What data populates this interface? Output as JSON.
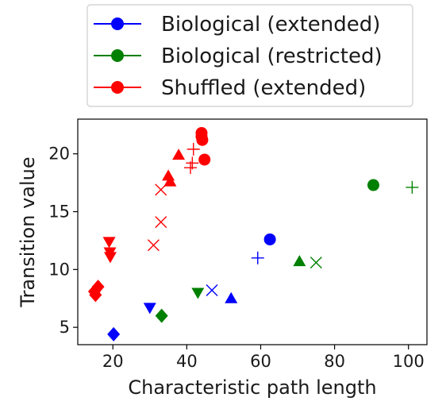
{
  "chart_data": {
    "type": "scatter",
    "xlabel": "Characteristic path length",
    "ylabel": "Transition value",
    "xlim": [
      10.5,
      105
    ],
    "ylim": [
      3.5,
      23
    ],
    "xticks": [
      20,
      40,
      60,
      80,
      100
    ],
    "yticks": [
      5,
      10,
      15,
      20
    ],
    "grid": false,
    "legend_position": "top-center",
    "series": [
      {
        "name": "Biological (extended)",
        "color": "#0000ff",
        "points": [
          {
            "x": 62.5,
            "y": 12.6,
            "marker": "circle"
          },
          {
            "x": 59.2,
            "y": 11.0,
            "marker": "plus"
          },
          {
            "x": 46.8,
            "y": 8.2,
            "marker": "x"
          },
          {
            "x": 52.0,
            "y": 7.5,
            "marker": "triangle-up"
          },
          {
            "x": 30.0,
            "y": 6.7,
            "marker": "triangle-down"
          },
          {
            "x": 20.2,
            "y": 4.4,
            "marker": "diamond"
          }
        ]
      },
      {
        "name": "Biological (restricted)",
        "color": "#008000",
        "points": [
          {
            "x": 90.5,
            "y": 17.3,
            "marker": "circle"
          },
          {
            "x": 101.0,
            "y": 17.1,
            "marker": "plus"
          },
          {
            "x": 70.5,
            "y": 10.7,
            "marker": "triangle-up"
          },
          {
            "x": 75.0,
            "y": 10.6,
            "marker": "x"
          },
          {
            "x": 43.0,
            "y": 8.0,
            "marker": "triangle-down"
          },
          {
            "x": 33.2,
            "y": 6.0,
            "marker": "diamond"
          }
        ]
      },
      {
        "name": "Shuffled (extended)",
        "color": "#ff0000",
        "points": [
          {
            "x": 44.0,
            "y": 21.8,
            "marker": "circle"
          },
          {
            "x": 44.0,
            "y": 21.5,
            "marker": "circle"
          },
          {
            "x": 44.2,
            "y": 21.2,
            "marker": "circle"
          },
          {
            "x": 44.8,
            "y": 19.5,
            "marker": "circle"
          },
          {
            "x": 41.8,
            "y": 20.4,
            "marker": "plus"
          },
          {
            "x": 41.5,
            "y": 19.2,
            "marker": "plus"
          },
          {
            "x": 41.0,
            "y": 18.8,
            "marker": "plus"
          },
          {
            "x": 37.8,
            "y": 19.9,
            "marker": "triangle-up"
          },
          {
            "x": 35.0,
            "y": 18.1,
            "marker": "triangle-up"
          },
          {
            "x": 35.5,
            "y": 17.6,
            "marker": "triangle-up"
          },
          {
            "x": 33.0,
            "y": 16.9,
            "marker": "x"
          },
          {
            "x": 33.0,
            "y": 14.1,
            "marker": "x"
          },
          {
            "x": 31.0,
            "y": 12.1,
            "marker": "x"
          },
          {
            "x": 19.0,
            "y": 12.4,
            "marker": "triangle-down"
          },
          {
            "x": 19.2,
            "y": 11.5,
            "marker": "triangle-down"
          },
          {
            "x": 19.3,
            "y": 11.1,
            "marker": "triangle-down"
          },
          {
            "x": 16.0,
            "y": 8.5,
            "marker": "diamond"
          },
          {
            "x": 15.0,
            "y": 8.1,
            "marker": "diamond"
          },
          {
            "x": 15.3,
            "y": 7.8,
            "marker": "diamond"
          }
        ]
      }
    ]
  }
}
